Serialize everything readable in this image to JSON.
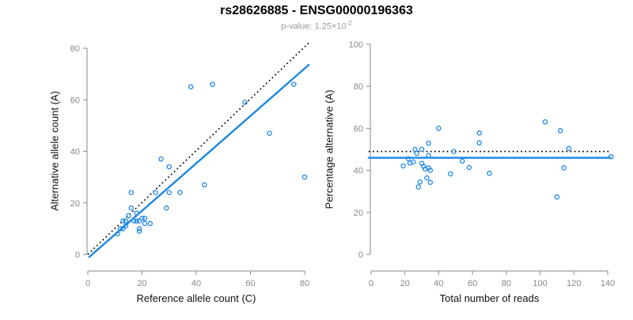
{
  "header": {
    "title": "rs28626885 - ENSG00000196363",
    "subtitle_prefix": "p-value: ",
    "pvalue_mantissa": "1.25×10",
    "pvalue_exponent": "-2"
  },
  "colors": {
    "points": "#1E87E5",
    "fit_line": "#1E87E5",
    "reference_line": "#000000",
    "axis": "#8a8a8a",
    "tick_label": "#878787",
    "axis_label": "#111111",
    "title": "#000000",
    "subtitle": "#9b9b9b"
  },
  "chart_data": [
    {
      "type": "scatter",
      "name": "allele-counts",
      "xlabel": "Reference allele count (C)",
      "ylabel": "Alternative allele count (A)",
      "xlim": [
        0,
        80
      ],
      "ylim": [
        0,
        80
      ],
      "xticks": [
        0,
        20,
        40,
        60,
        80
      ],
      "yticks": [
        0,
        20,
        40,
        60,
        80
      ],
      "grid": false,
      "legend": "none",
      "points": [
        [
          11,
          8
        ],
        [
          12,
          10
        ],
        [
          13,
          10
        ],
        [
          13,
          13
        ],
        [
          14,
          11
        ],
        [
          14,
          13
        ],
        [
          15,
          15
        ],
        [
          16,
          18
        ],
        [
          16,
          24
        ],
        [
          17,
          13
        ],
        [
          18,
          13
        ],
        [
          18,
          16
        ],
        [
          19,
          9
        ],
        [
          19,
          10
        ],
        [
          19,
          13
        ],
        [
          20,
          14
        ],
        [
          21,
          12
        ],
        [
          21,
          14
        ],
        [
          23,
          12
        ],
        [
          25,
          24
        ],
        [
          27,
          37
        ],
        [
          29,
          18
        ],
        [
          30,
          24
        ],
        [
          30,
          34
        ],
        [
          34,
          24
        ],
        [
          38,
          65
        ],
        [
          43,
          27
        ],
        [
          46,
          66
        ],
        [
          58,
          59
        ],
        [
          67,
          47
        ],
        [
          76,
          66
        ],
        [
          80,
          30
        ]
      ],
      "lines": [
        {
          "name": "identity-line",
          "style": "dotted",
          "from": [
            0,
            0
          ],
          "to": [
            82,
            82.5
          ]
        },
        {
          "name": "fit-line",
          "style": "solid",
          "from": [
            0.5,
            -1.0
          ],
          "to": [
            81.5,
            73.5
          ]
        }
      ]
    },
    {
      "type": "scatter",
      "name": "percentage-vs-coverage",
      "xlabel": "Total number of reads",
      "ylabel": "Percentage alternative (A)",
      "xlim": [
        0,
        140
      ],
      "ylim": [
        0,
        100
      ],
      "xticks": [
        0,
        20,
        40,
        60,
        80,
        100,
        120,
        140
      ],
      "yticks": [
        0,
        20,
        40,
        60,
        80,
        100
      ],
      "grid": false,
      "legend": "none",
      "points": [
        [
          19,
          42.1
        ],
        [
          22,
          45.5
        ],
        [
          23,
          43.5
        ],
        [
          26,
          50
        ],
        [
          25,
          44
        ],
        [
          27,
          48.1
        ],
        [
          30,
          50
        ],
        [
          34,
          52.9
        ],
        [
          40,
          60
        ],
        [
          30,
          43.3
        ],
        [
          31,
          41.9
        ],
        [
          34,
          47.1
        ],
        [
          28,
          32.1
        ],
        [
          29,
          34.5
        ],
        [
          32,
          40.6
        ],
        [
          34,
          41.2
        ],
        [
          33,
          36.4
        ],
        [
          35,
          40
        ],
        [
          35,
          34.3
        ],
        [
          49,
          49
        ],
        [
          64,
          57.8
        ],
        [
          47,
          38.3
        ],
        [
          54,
          44.4
        ],
        [
          64,
          53.1
        ],
        [
          58,
          41.4
        ],
        [
          103,
          63.1
        ],
        [
          70,
          38.6
        ],
        [
          112,
          58.9
        ],
        [
          117,
          50.4
        ],
        [
          114,
          41.2
        ],
        [
          142,
          46.5
        ],
        [
          110,
          27.3
        ]
      ],
      "lines": [
        {
          "name": "expected-50pct-line",
          "style": "dotted",
          "from": [
            -1.5,
            49
          ],
          "to": [
            141.5,
            49
          ]
        },
        {
          "name": "fit-line",
          "style": "solid",
          "from": [
            -1.5,
            46
          ],
          "to": [
            141.5,
            46
          ]
        }
      ]
    }
  ]
}
